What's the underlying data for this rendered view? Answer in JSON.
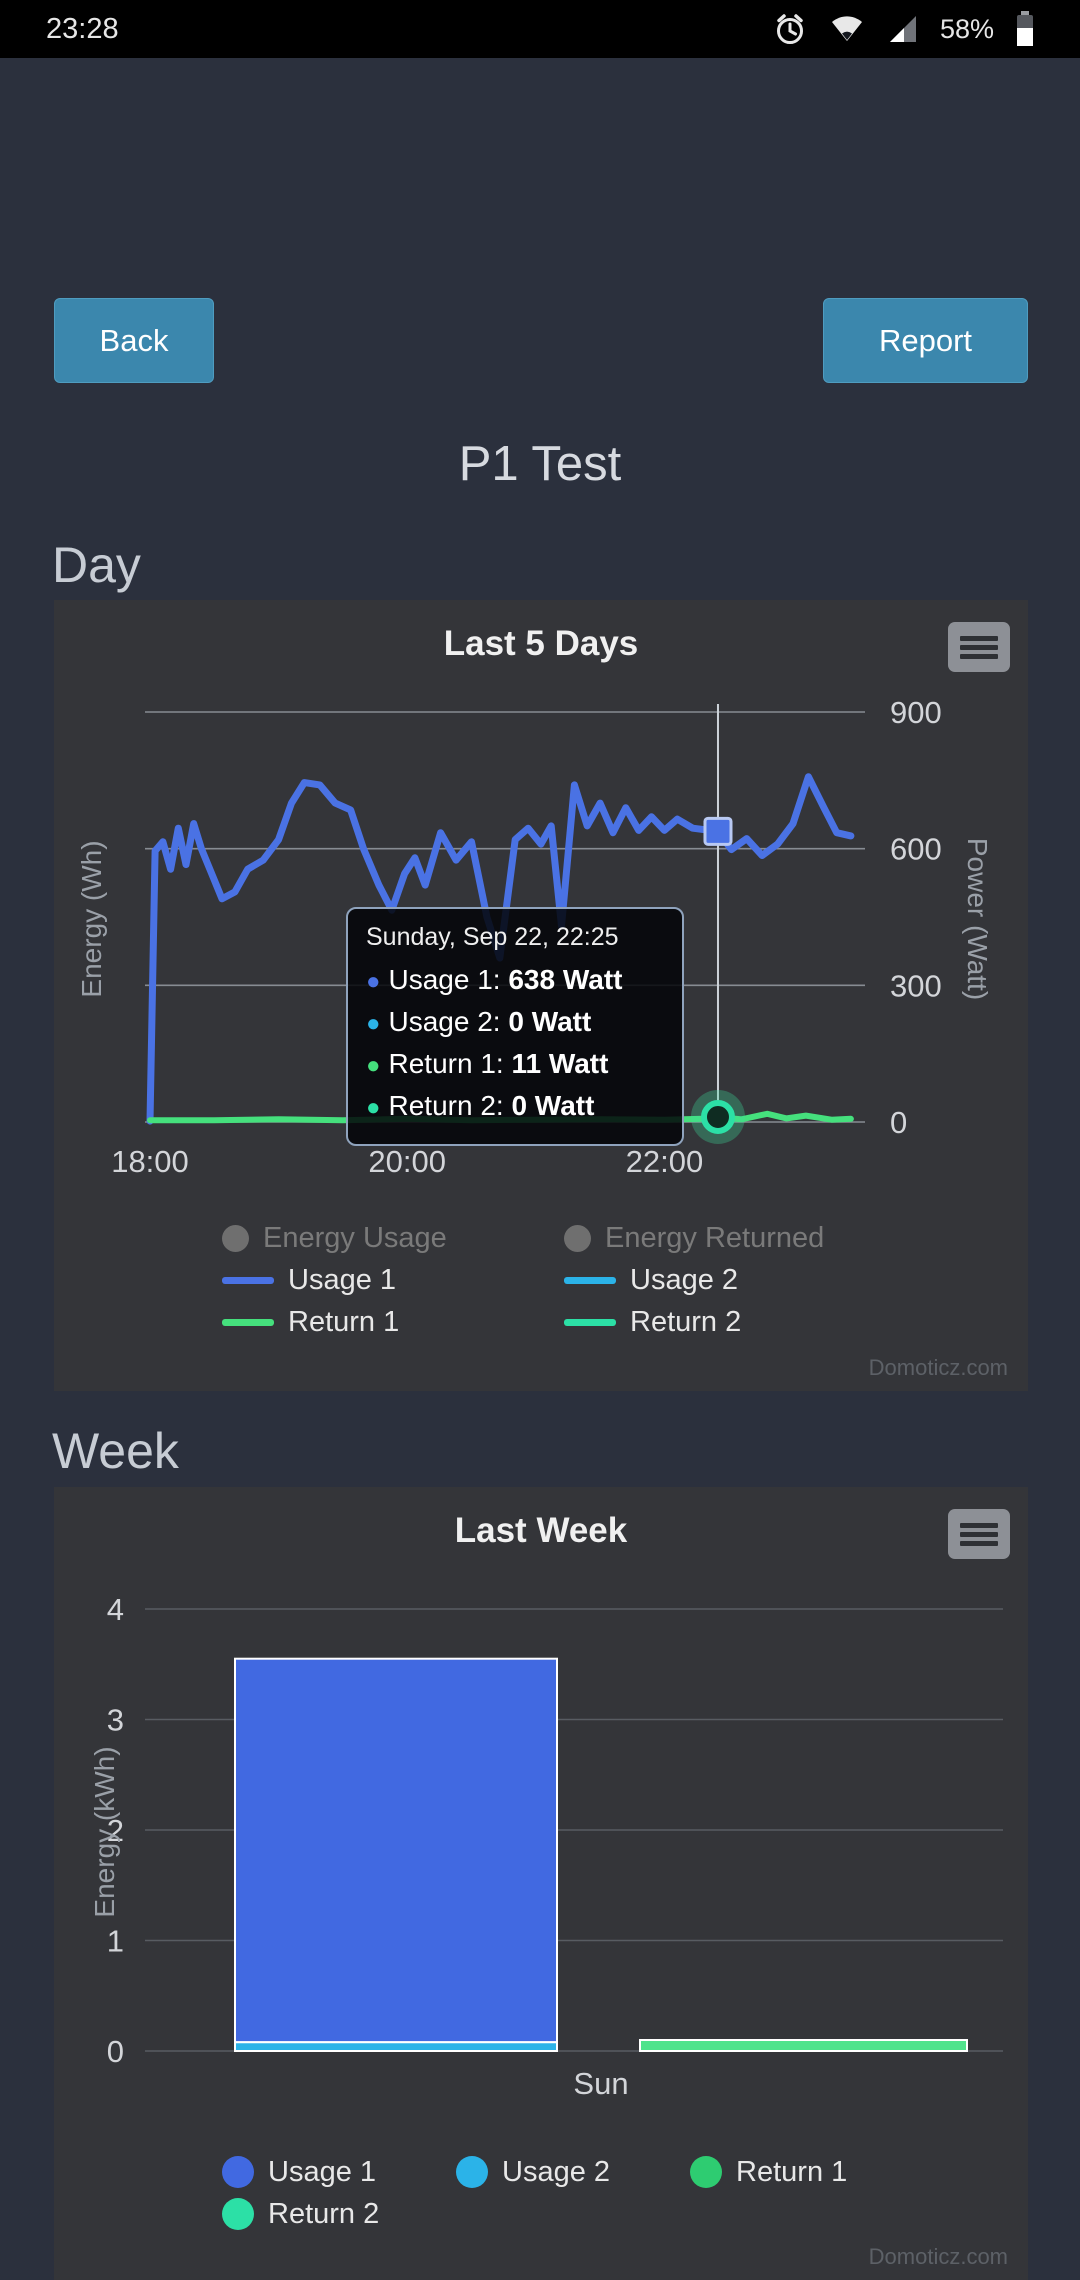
{
  "status_bar": {
    "time": "23:28",
    "battery": "58%",
    "icons": [
      "alarm-icon",
      "wifi-icon",
      "cell-signal-icon",
      "battery-icon"
    ]
  },
  "toolbar": {
    "back": "Back",
    "report": "Report"
  },
  "page_title": "P1 Test",
  "sections": {
    "day": "Day",
    "week": "Week"
  },
  "watermark": "Domoticz.com",
  "colors": {
    "accent_button": "#3b87ad",
    "usage1": "#4a72e4",
    "usage2": "#2bb3e8",
    "return1": "#45e07d",
    "return2": "#2ce0a6",
    "disabled_legend": "#6f6f6f"
  },
  "chart_data": [
    {
      "type": "line",
      "title": "Last 5 Days",
      "ylabel_left": "Energy (Wh)",
      "ylabel_right": "Power (Watt)",
      "ylim": [
        0,
        900
      ],
      "yticks": [
        0,
        300,
        600,
        900
      ],
      "x_unit": "hours after 18:00",
      "xticks": [
        {
          "t": 0,
          "label": "18:00"
        },
        {
          "t": 2,
          "label": "20:00"
        },
        {
          "t": 4,
          "label": "22:00"
        }
      ],
      "crosshair_t": 4.4167,
      "series": [
        {
          "name": "Usage 1",
          "color": "#4a72e4",
          "width": 7,
          "points": [
            [
              0,
              2
            ],
            [
              0.04,
              595
            ],
            [
              0.1,
              615
            ],
            [
              0.16,
              555
            ],
            [
              0.22,
              645
            ],
            [
              0.28,
              565
            ],
            [
              0.34,
              655
            ],
            [
              0.4,
              600
            ],
            [
              0.48,
              545
            ],
            [
              0.56,
              490
            ],
            [
              0.66,
              505
            ],
            [
              0.76,
              555
            ],
            [
              0.88,
              575
            ],
            [
              1.0,
              620
            ],
            [
              1.1,
              700
            ],
            [
              1.2,
              745
            ],
            [
              1.32,
              740
            ],
            [
              1.44,
              700
            ],
            [
              1.56,
              685
            ],
            [
              1.66,
              600
            ],
            [
              1.78,
              520
            ],
            [
              1.88,
              465
            ],
            [
              1.98,
              545
            ],
            [
              2.06,
              580
            ],
            [
              2.14,
              520
            ],
            [
              2.26,
              635
            ],
            [
              2.38,
              575
            ],
            [
              2.5,
              615
            ],
            [
              2.62,
              450
            ],
            [
              2.72,
              360
            ],
            [
              2.84,
              620
            ],
            [
              2.94,
              645
            ],
            [
              3.04,
              610
            ],
            [
              3.12,
              650
            ],
            [
              3.2,
              430
            ],
            [
              3.3,
              740
            ],
            [
              3.4,
              650
            ],
            [
              3.5,
              700
            ],
            [
              3.6,
              635
            ],
            [
              3.7,
              690
            ],
            [
              3.8,
              640
            ],
            [
              3.9,
              670
            ],
            [
              4.0,
              640
            ],
            [
              4.1,
              665
            ],
            [
              4.22,
              645
            ],
            [
              4.4167,
              638
            ],
            [
              4.52,
              598
            ],
            [
              4.64,
              622
            ],
            [
              4.76,
              585
            ],
            [
              4.88,
              610
            ],
            [
              5.0,
              655
            ],
            [
              5.12,
              758
            ],
            [
              5.24,
              690
            ],
            [
              5.34,
              635
            ],
            [
              5.45,
              628
            ]
          ]
        },
        {
          "name": "Return 1",
          "color": "#45e07d",
          "width": 6,
          "points": [
            [
              0,
              4
            ],
            [
              0.5,
              4
            ],
            [
              1,
              6
            ],
            [
              1.5,
              4
            ],
            [
              2,
              7
            ],
            [
              2.5,
              4
            ],
            [
              3,
              5
            ],
            [
              3.5,
              6
            ],
            [
              4,
              5
            ],
            [
              4.3,
              7
            ],
            [
              4.4167,
              11
            ],
            [
              4.6,
              6
            ],
            [
              4.8,
              18
            ],
            [
              4.95,
              8
            ],
            [
              5.1,
              14
            ],
            [
              5.3,
              5
            ],
            [
              5.45,
              7
            ]
          ]
        }
      ],
      "markers": [
        {
          "shape": "square",
          "t": 4.4167,
          "value": 638,
          "fill": "#4a72e4",
          "ring": "#b9c9f2"
        },
        {
          "shape": "circle",
          "t": 4.4167,
          "value": 11,
          "ring": "#2ce0a6",
          "halo": "rgba(60,224,160,0.30)"
        }
      ],
      "tooltip": {
        "header": "Sunday, Sep 22, 22:25",
        "rows": [
          {
            "label": "Usage 1",
            "value": "638 Watt",
            "color": "#4a72e4"
          },
          {
            "label": "Usage 2",
            "value": "0 Watt",
            "color": "#2bb3e8"
          },
          {
            "label": "Return 1",
            "value": "11 Watt",
            "color": "#45e07d"
          },
          {
            "label": "Return 2",
            "value": "0 Watt",
            "color": "#2ce0a6"
          }
        ]
      },
      "legend_disabled": [
        {
          "label": "Energy Usage"
        },
        {
          "label": "Energy Returned"
        }
      ],
      "legend": [
        {
          "label": "Usage 1",
          "color": "#4a72e4"
        },
        {
          "label": "Usage 2",
          "color": "#2bb3e8"
        },
        {
          "label": "Return 1",
          "color": "#45e07d"
        },
        {
          "label": "Return 2",
          "color": "#2ce0a6"
        }
      ]
    },
    {
      "type": "bar",
      "title": "Last Week",
      "ylabel": "Energy (kWh)",
      "ylim": [
        0,
        4
      ],
      "yticks": [
        0,
        1,
        2,
        3,
        4
      ],
      "categories": [
        "Sun"
      ],
      "series": [
        {
          "name": "Usage 1",
          "color": "#4169e1",
          "values": [
            3.47
          ]
        },
        {
          "name": "Usage 2",
          "color": "#2bb3e8",
          "values": [
            0.08
          ]
        },
        {
          "name": "Return 1",
          "color": "#4fe38c",
          "values": [
            0.1
          ]
        },
        {
          "name": "Return 2",
          "color": "#2ce0a6",
          "values": [
            0
          ]
        }
      ],
      "legend": [
        {
          "label": "Usage 1",
          "color": "#4169e1"
        },
        {
          "label": "Usage 2",
          "color": "#2bb3e8"
        },
        {
          "label": "Return 1",
          "color": "#2ecc71"
        },
        {
          "label": "Return 2",
          "color": "#2ce0a6"
        }
      ]
    }
  ]
}
